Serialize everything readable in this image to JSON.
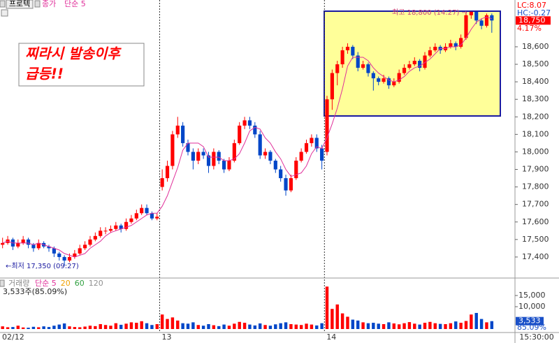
{
  "stock": "프로텍",
  "time_label": "15:30:00",
  "chart_data": [
    {
      "type": "candlestick",
      "title": "종가",
      "up_color": "#ff0000",
      "down_color": "#0046c8",
      "annotation": [
        "찌라시 발송이후",
        "급등!!"
      ],
      "high_label": "최고 18,800 (14:27) →",
      "low_label": "←최저 17,350 (09:27)",
      "info": [
        "LC:8.07",
        "HC:-0.27"
      ],
      "last": {
        "value": 18750,
        "label": "18,750"
      },
      "change_label": "4.17%",
      "xlim": [
        0,
        100
      ],
      "xticks": [
        {
          "value": 0,
          "label": "02/12"
        },
        {
          "value": 31,
          "label": "13"
        },
        {
          "value": 63,
          "label": "14"
        }
      ],
      "ylim": [
        17284,
        18867
      ],
      "yticks": [
        {
          "value": 17400,
          "label": "17,400"
        },
        {
          "value": 17500,
          "label": "17,500"
        },
        {
          "value": 17600,
          "label": "17,600"
        },
        {
          "value": 17700,
          "label": "17,700"
        },
        {
          "value": 17800,
          "label": "17,800"
        },
        {
          "value": 17900,
          "label": "17,900"
        },
        {
          "value": 18000,
          "label": "18,000"
        },
        {
          "value": 18100,
          "label": "18,100"
        },
        {
          "value": 18200,
          "label": "18,200"
        },
        {
          "value": 18300,
          "label": "18,300"
        },
        {
          "value": 18400,
          "label": "18,400"
        },
        {
          "value": 18500,
          "label": "18,500"
        },
        {
          "value": 18600,
          "label": "18,600"
        }
      ],
      "candles": [
        [
          17470,
          17510,
          17450,
          17480
        ],
        [
          17480,
          17520,
          17470,
          17500
        ],
        [
          17500,
          17510,
          17440,
          17460
        ],
        [
          17460,
          17500,
          17450,
          17480
        ],
        [
          17480,
          17520,
          17470,
          17500
        ],
        [
          17500,
          17510,
          17450,
          17470
        ],
        [
          17470,
          17480,
          17430,
          17450
        ],
        [
          17450,
          17500,
          17440,
          17480
        ],
        [
          17480,
          17490,
          17450,
          17460
        ],
        [
          17460,
          17470,
          17430,
          17450
        ],
        [
          17450,
          17460,
          17400,
          17420
        ],
        [
          17420,
          17430,
          17380,
          17400
        ],
        [
          17400,
          17410,
          17350,
          17380
        ],
        [
          17380,
          17420,
          17370,
          17400
        ],
        [
          17400,
          17440,
          17390,
          17420
        ],
        [
          17420,
          17470,
          17410,
          17450
        ],
        [
          17450,
          17490,
          17440,
          17470
        ],
        [
          17470,
          17520,
          17460,
          17500
        ],
        [
          17500,
          17540,
          17490,
          17520
        ],
        [
          17520,
          17570,
          17510,
          17550
        ],
        [
          17550,
          17570,
          17530,
          17550
        ],
        [
          17550,
          17580,
          17540,
          17560
        ],
        [
          17560,
          17600,
          17550,
          17580
        ],
        [
          17580,
          17590,
          17540,
          17560
        ],
        [
          17560,
          17620,
          17550,
          17600
        ],
        [
          17600,
          17640,
          17590,
          17620
        ],
        [
          17620,
          17670,
          17610,
          17650
        ],
        [
          17650,
          17700,
          17640,
          17680
        ],
        [
          17680,
          17700,
          17640,
          17650
        ],
        [
          17650,
          17660,
          17610,
          17620
        ],
        [
          17620,
          17650,
          17610,
          17630
        ],
        [
          17800,
          17900,
          17780,
          17850
        ],
        [
          17850,
          17950,
          17830,
          17920
        ],
        [
          17920,
          18120,
          17900,
          18100
        ],
        [
          18100,
          18200,
          18080,
          18150
        ],
        [
          18150,
          18170,
          18030,
          18050
        ],
        [
          18050,
          18070,
          17980,
          18000
        ],
        [
          18000,
          18020,
          17900,
          17950
        ],
        [
          17950,
          18020,
          17930,
          18000
        ],
        [
          18000,
          18020,
          17960,
          17980
        ],
        [
          17980,
          18000,
          17880,
          17920
        ],
        [
          17920,
          18020,
          17900,
          18000
        ],
        [
          18000,
          18010,
          17930,
          17950
        ],
        [
          17950,
          17960,
          17880,
          17900
        ],
        [
          17900,
          17970,
          17890,
          17950
        ],
        [
          17950,
          18070,
          17940,
          18050
        ],
        [
          18050,
          18170,
          18040,
          18150
        ],
        [
          18150,
          18200,
          18130,
          18180
        ],
        [
          18180,
          18200,
          18130,
          18150
        ],
        [
          18150,
          18170,
          18080,
          18100
        ],
        [
          18100,
          18120,
          17960,
          17980
        ],
        [
          17980,
          18020,
          17960,
          18000
        ],
        [
          18000,
          18010,
          17930,
          17950
        ],
        [
          17950,
          17960,
          17880,
          17900
        ],
        [
          17900,
          17920,
          17830,
          17850
        ],
        [
          17850,
          17870,
          17750,
          17780
        ],
        [
          17780,
          17870,
          17770,
          17850
        ],
        [
          17850,
          17970,
          17840,
          17950
        ],
        [
          17950,
          18020,
          17940,
          18000
        ],
        [
          18000,
          18070,
          17990,
          18050
        ],
        [
          18050,
          18100,
          18030,
          18080
        ],
        [
          18080,
          18100,
          18000,
          18020
        ],
        [
          18020,
          18040,
          17900,
          17950
        ],
        [
          18000,
          18320,
          17980,
          18300
        ],
        [
          18300,
          18470,
          18240,
          18450
        ],
        [
          18450,
          18520,
          18380,
          18500
        ],
        [
          18500,
          18600,
          18480,
          18580
        ],
        [
          18580,
          18620,
          18560,
          18600
        ],
        [
          18600,
          18610,
          18530,
          18550
        ],
        [
          18550,
          18570,
          18460,
          18480
        ],
        [
          18480,
          18520,
          18470,
          18500
        ],
        [
          18500,
          18510,
          18430,
          18450
        ],
        [
          18450,
          18460,
          18350,
          18420
        ],
        [
          18420,
          18430,
          18380,
          18400
        ],
        [
          18400,
          18440,
          18390,
          18420
        ],
        [
          18420,
          18430,
          18360,
          18380
        ],
        [
          18380,
          18420,
          18370,
          18400
        ],
        [
          18400,
          18470,
          18390,
          18450
        ],
        [
          18450,
          18500,
          18440,
          18480
        ],
        [
          18480,
          18520,
          18470,
          18500
        ],
        [
          18500,
          18540,
          18490,
          18520
        ],
        [
          18520,
          18530,
          18460,
          18480
        ],
        [
          18480,
          18570,
          18470,
          18550
        ],
        [
          18550,
          18600,
          18540,
          18580
        ],
        [
          18580,
          18620,
          18570,
          18600
        ],
        [
          18600,
          18610,
          18560,
          18580
        ],
        [
          18580,
          18620,
          18570,
          18600
        ],
        [
          18600,
          18640,
          18590,
          18620
        ],
        [
          18620,
          18630,
          18580,
          18600
        ],
        [
          18600,
          18670,
          18590,
          18650
        ],
        [
          18650,
          18790,
          18640,
          18780
        ],
        [
          18780,
          18800,
          18760,
          18800
        ],
        [
          18800,
          18800,
          18730,
          18750
        ],
        [
          18750,
          18760,
          18700,
          18720
        ],
        [
          18720,
          18790,
          18710,
          18780
        ],
        [
          18780,
          18790,
          18680,
          18750
        ]
      ],
      "series": [
        {
          "name": "단순 5",
          "color": "#e0309a",
          "values": [
            17480,
            17490,
            17480,
            17480,
            17480,
            17480,
            17470,
            17480,
            17470,
            17460,
            17450,
            17440,
            17420,
            17410,
            17400,
            17410,
            17420,
            17450,
            17470,
            17490,
            17520,
            17540,
            17550,
            17560,
            17570,
            17580,
            17600,
            17620,
            17640,
            17650,
            17650,
            17690,
            17750,
            17830,
            17910,
            18010,
            18050,
            18050,
            18050,
            18030,
            17970,
            17970,
            17970,
            17950,
            17950,
            17960,
            17990,
            18050,
            18120,
            18140,
            18130,
            18080,
            18050,
            18000,
            17960,
            17900,
            17860,
            17870,
            17880,
            17920,
            17990,
            18030,
            18020,
            18080,
            18160,
            18250,
            18360,
            18490,
            18540,
            18540,
            18540,
            18520,
            18480,
            18450,
            18430,
            18410,
            18400,
            18410,
            18430,
            18460,
            18480,
            18490,
            18510,
            18530,
            18560,
            18590,
            18590,
            18600,
            18600,
            18610,
            18650,
            18700,
            18740,
            18760,
            18770,
            18760
          ]
        }
      ]
    },
    {
      "type": "bar",
      "title": "거래량",
      "legend": [
        {
          "name": "단순 5",
          "color": "#e0309a"
        },
        {
          "name": "20",
          "color": "#f0a000"
        },
        {
          "name": "60",
          "color": "#30a040"
        },
        {
          "name": "120",
          "color": "#909090"
        }
      ],
      "info": "3,533주(85.09%)",
      "last": {
        "value": 3533,
        "label": "3,533"
      },
      "change_label": "85.09%",
      "ylim": [
        0,
        22200
      ],
      "yticks": [
        {
          "value": 10000,
          "label": "10,000"
        },
        {
          "value": 15000,
          "label": "15,000"
        }
      ],
      "values": [
        1200,
        800,
        900,
        1500,
        700,
        600,
        1000,
        800,
        1200,
        900,
        1500,
        2000,
        2500,
        1200,
        900,
        800,
        1100,
        1500,
        1300,
        2200,
        1800,
        1500,
        2600,
        1900,
        2400,
        3000,
        2800,
        3500,
        2600,
        1800,
        2200,
        6500,
        4500,
        5200,
        3800,
        2600,
        2400,
        3000,
        1800,
        1500,
        2200,
        1700,
        1300,
        2000,
        1500,
        2400,
        3200,
        2800,
        2000,
        1600,
        2500,
        1800,
        1500,
        2100,
        2600,
        3000,
        2200,
        2000,
        1800,
        2400,
        2000,
        1600,
        2600,
        19000,
        9000,
        11000,
        7000,
        5500,
        4200,
        3800,
        3000,
        2600,
        2800,
        2400,
        2200,
        3000,
        2500,
        2100,
        2600,
        3100,
        2400,
        2000,
        2800,
        3200,
        2600,
        2300,
        2200,
        2600,
        3400,
        2800,
        3600,
        6500,
        7200,
        4500,
        3000,
        3533
      ]
    }
  ]
}
